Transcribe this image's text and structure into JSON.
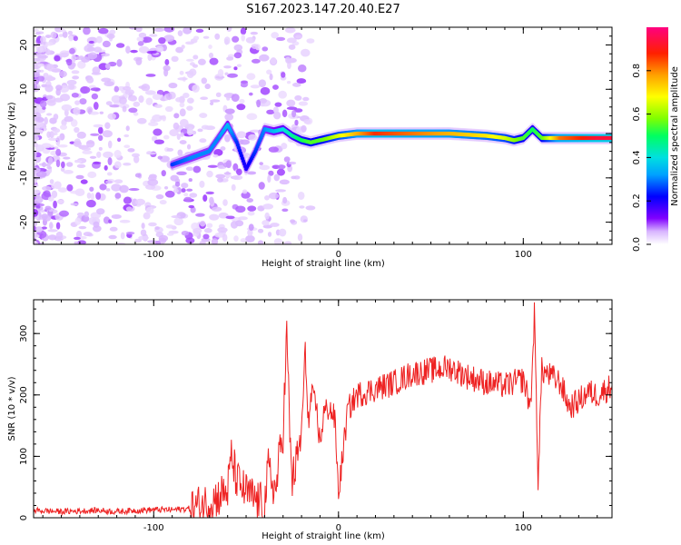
{
  "title": "S167.2023.147.20.40.E27",
  "chart_data": [
    {
      "type": "heatmap",
      "xlabel": "Height of straight line (km)",
      "ylabel": "Frequency (Hz)",
      "xlim": [
        -165,
        148
      ],
      "ylim": [
        -25,
        24
      ],
      "xticks": [
        -100,
        0,
        100
      ],
      "yticks": [
        -20,
        -10,
        0,
        10,
        20
      ],
      "colorbar": {
        "label": "Normalized spectral amplitude",
        "ticks": [
          0.0,
          0.2,
          0.4,
          0.6,
          0.8
        ],
        "range": [
          0,
          1
        ],
        "colors": [
          "#ffffff",
          "#d8b4ff",
          "#8000ff",
          "#0000ff",
          "#00a0ff",
          "#00e0e0",
          "#00ff60",
          "#80ff00",
          "#ffff00",
          "#ffa000",
          "#ff2000",
          "#ff0080"
        ]
      },
      "ridge": {
        "x": [
          -90,
          -80,
          -70,
          -65,
          -60,
          -55,
          -50,
          -45,
          -40,
          -35,
          -30,
          -25,
          -20,
          -15,
          -10,
          -5,
          0,
          10,
          20,
          40,
          60,
          80,
          90,
          95,
          100,
          105,
          110,
          120,
          130,
          140,
          148
        ],
        "frequency": [
          -7,
          -5.5,
          -4,
          -1,
          2,
          -2,
          -8,
          -4,
          1,
          0.5,
          1,
          -0.5,
          -1.5,
          -2,
          -1.5,
          -1,
          -0.5,
          0,
          0,
          0,
          0,
          -0.5,
          -1,
          -1.5,
          -1,
          1,
          -1,
          -1,
          -1,
          -1,
          -1
        ],
        "amplitude": [
          0.3,
          0.35,
          0.35,
          0.35,
          0.4,
          0.3,
          0.25,
          0.3,
          0.35,
          0.4,
          0.45,
          0.5,
          0.55,
          0.6,
          0.6,
          0.65,
          0.7,
          0.8,
          0.9,
          0.85,
          0.8,
          0.75,
          0.7,
          0.65,
          0.6,
          0.55,
          0.6,
          0.85,
          0.9,
          0.95,
          0.95
        ]
      }
    },
    {
      "type": "line",
      "xlabel": "Height of straight line (km)",
      "ylabel": "SNR (10 * v/v)",
      "xlim": [
        -165,
        148
      ],
      "ylim": [
        0,
        355
      ],
      "xticks": [
        -100,
        0,
        100
      ],
      "yticks": [
        0,
        100,
        200,
        300
      ],
      "color": "#ee2222",
      "series": [
        {
          "x": [
            -165,
            -150,
            -140,
            -130,
            -120,
            -110,
            -100,
            -90,
            -80,
            -75,
            -70,
            -65,
            -60,
            -58,
            -55,
            -50,
            -45,
            -40,
            -38,
            -36,
            -34,
            -32,
            -30,
            -28,
            -26,
            -25,
            -22,
            -20,
            -18,
            -16,
            -15,
            -12,
            -10,
            -8,
            -5,
            -2,
            0,
            5,
            10,
            20,
            30,
            40,
            50,
            60,
            70,
            80,
            90,
            100,
            104,
            106,
            108,
            110,
            115,
            120,
            125,
            130,
            135,
            140,
            148
          ],
          "values": [
            12,
            10,
            11,
            12,
            10,
            12,
            13,
            13,
            15,
            20,
            25,
            35,
            45,
            100,
            60,
            40,
            30,
            20,
            80,
            60,
            40,
            100,
            140,
            300,
            110,
            60,
            100,
            140,
            270,
            140,
            200,
            180,
            120,
            170,
            180,
            160,
            40,
            175,
            200,
            210,
            220,
            235,
            240,
            245,
            230,
            220,
            215,
            225,
            180,
            330,
            65,
            240,
            230,
            220,
            180,
            190,
            205,
            200,
            215
          ]
        }
      ]
    }
  ]
}
